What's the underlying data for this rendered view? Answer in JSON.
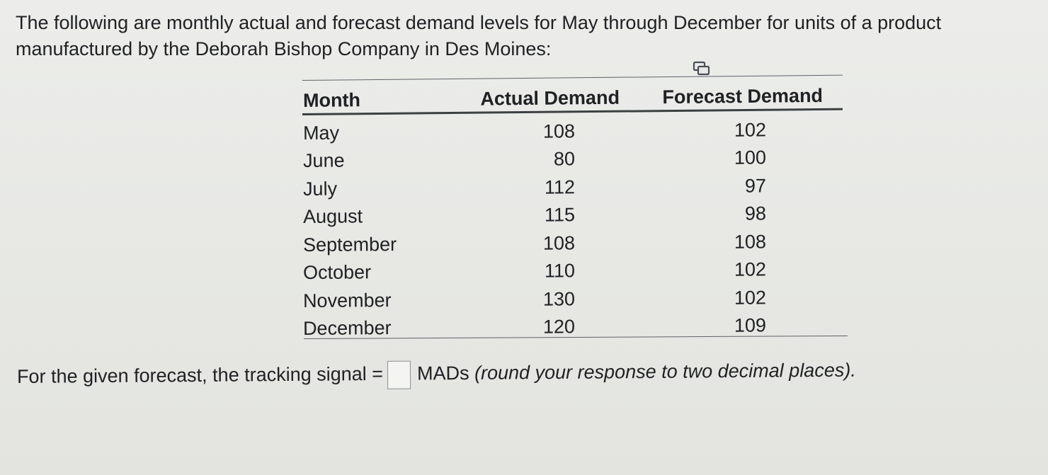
{
  "question": {
    "intro_line1": "The following are monthly actual and forecast demand levels for May through December for units of a product",
    "intro_line2": "manufactured by the Deborah Bishop Company in Des Moines:"
  },
  "table": {
    "headers": {
      "month": "Month",
      "actual": "Actual Demand",
      "forecast": "Forecast Demand"
    },
    "rows": [
      {
        "month": "May",
        "actual": "108",
        "forecast": "102"
      },
      {
        "month": "June",
        "actual": "80",
        "forecast": "100"
      },
      {
        "month": "July",
        "actual": "112",
        "forecast": "97"
      },
      {
        "month": "August",
        "actual": "115",
        "forecast": "98"
      },
      {
        "month": "September",
        "actual": "108",
        "forecast": "108"
      },
      {
        "month": "October",
        "actual": "110",
        "forecast": "102"
      },
      {
        "month": "November",
        "actual": "130",
        "forecast": "102"
      },
      {
        "month": "December",
        "actual": "120",
        "forecast": "109"
      }
    ]
  },
  "prompt": {
    "prefix": "For the given forecast, the tracking signal =",
    "answer_value": "",
    "units": "MADs",
    "hint": "(round your response to two decimal places)."
  },
  "icons": {
    "copy_table": "copy-table-icon"
  },
  "colors": {
    "text": "#202124",
    "background": "#e9eae6",
    "icon": "#4a4f57"
  }
}
